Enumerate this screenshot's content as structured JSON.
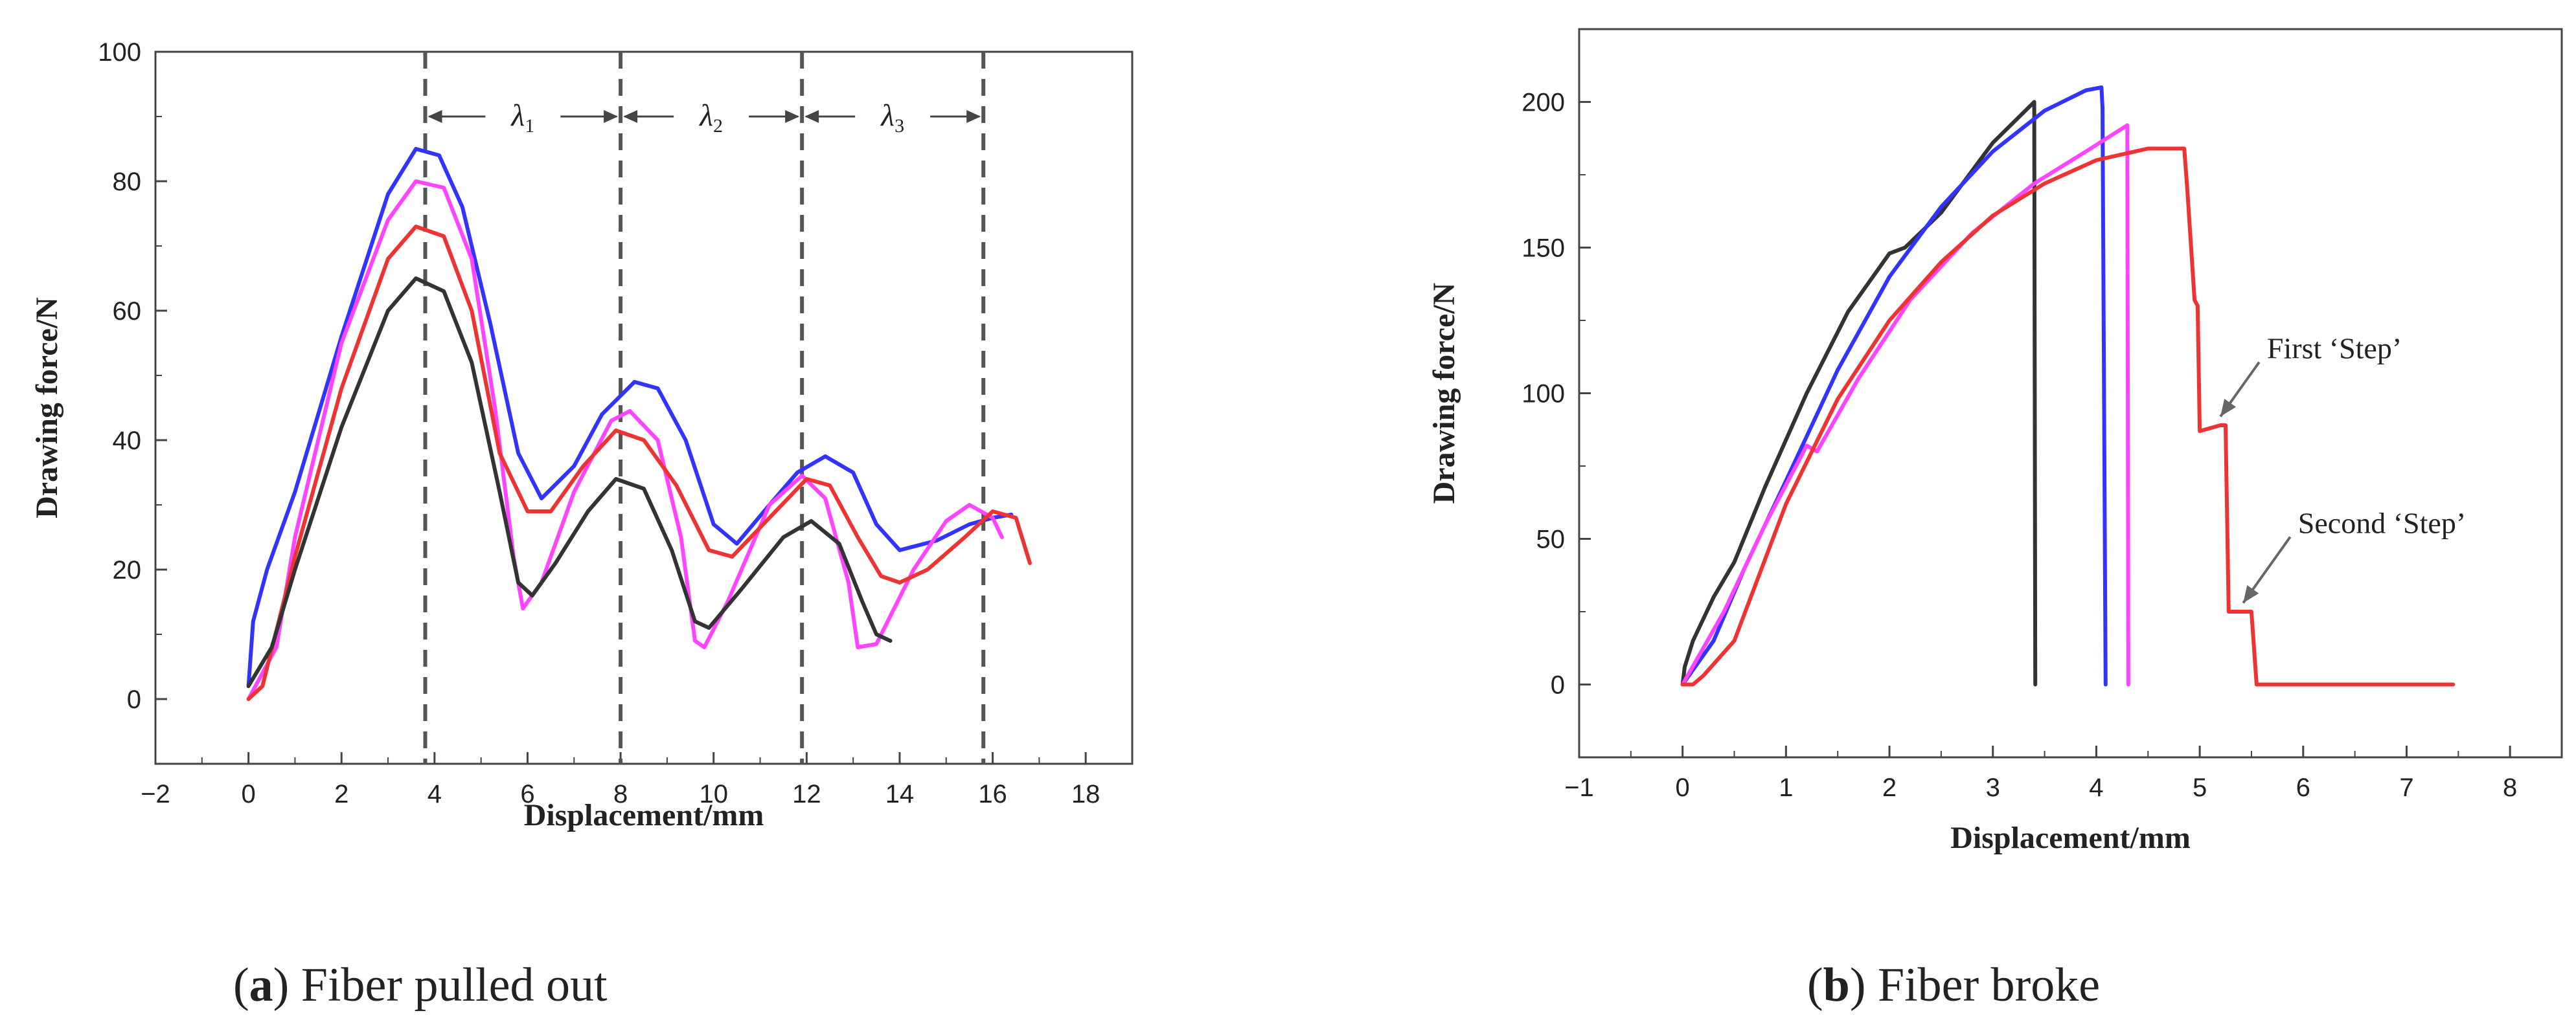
{
  "chart_data": [
    {
      "type": "line",
      "xlabel": "Displacement/mm",
      "ylabel": "Drawing force/N",
      "xlim": [
        -2,
        19
      ],
      "ylim": [
        -10,
        100
      ],
      "xticks": [
        -2,
        0,
        2,
        4,
        6,
        8,
        10,
        12,
        14,
        16,
        18
      ],
      "yticks": [
        0,
        20,
        40,
        60,
        80,
        100
      ],
      "grid": false,
      "legend": "none",
      "vlines": [
        3.8,
        8.0,
        11.9,
        15.8
      ],
      "intervals": [
        {
          "from": 3.8,
          "to": 8.0,
          "label": "λ",
          "sub": "1"
        },
        {
          "from": 8.0,
          "to": 11.9,
          "label": "λ",
          "sub": "2"
        },
        {
          "from": 11.9,
          "to": 15.8,
          "label": "λ",
          "sub": "3"
        }
      ],
      "series": [
        {
          "color": "#3333ff",
          "points": [
            [
              0,
              2
            ],
            [
              0.1,
              12
            ],
            [
              0.4,
              20
            ],
            [
              1,
              32
            ],
            [
              2,
              56
            ],
            [
              3,
              78
            ],
            [
              3.6,
              85
            ],
            [
              4.1,
              84
            ],
            [
              4.6,
              76
            ],
            [
              5.2,
              58
            ],
            [
              5.8,
              38
            ],
            [
              6.3,
              31
            ],
            [
              7,
              36
            ],
            [
              7.6,
              44
            ],
            [
              8.3,
              49
            ],
            [
              8.8,
              48
            ],
            [
              9.4,
              40
            ],
            [
              10,
              27
            ],
            [
              10.5,
              24
            ],
            [
              11.2,
              30
            ],
            [
              11.8,
              35
            ],
            [
              12.4,
              37.5
            ],
            [
              13,
              35
            ],
            [
              13.5,
              27
            ],
            [
              14,
              23
            ],
            [
              14.8,
              24.5
            ],
            [
              15.5,
              27
            ],
            [
              16,
              28
            ],
            [
              16.4,
              28.5
            ]
          ]
        },
        {
          "color": "#ff44ff",
          "points": [
            [
              0,
              0
            ],
            [
              0.6,
              8
            ],
            [
              1,
              25
            ],
            [
              2,
              55
            ],
            [
              3,
              74
            ],
            [
              3.6,
              80
            ],
            [
              4.2,
              79
            ],
            [
              4.8,
              68
            ],
            [
              5.3,
              45
            ],
            [
              5.7,
              22
            ],
            [
              5.9,
              14
            ],
            [
              6.3,
              18
            ],
            [
              7,
              32
            ],
            [
              7.8,
              43
            ],
            [
              8.2,
              44.5
            ],
            [
              8.8,
              40
            ],
            [
              9.3,
              25
            ],
            [
              9.6,
              9
            ],
            [
              9.8,
              8
            ],
            [
              10.3,
              15
            ],
            [
              11.2,
              30
            ],
            [
              11.9,
              34.5
            ],
            [
              12.4,
              31
            ],
            [
              12.9,
              18
            ],
            [
              13.1,
              8
            ],
            [
              13.5,
              8.5
            ],
            [
              14.3,
              20
            ],
            [
              15,
              27.5
            ],
            [
              15.5,
              30
            ],
            [
              16,
              28
            ],
            [
              16.2,
              25
            ]
          ]
        },
        {
          "color": "#ee3333",
          "points": [
            [
              0,
              0
            ],
            [
              0.3,
              2
            ],
            [
              1,
              22
            ],
            [
              2,
              48
            ],
            [
              3,
              68
            ],
            [
              3.6,
              73
            ],
            [
              4.2,
              71.5
            ],
            [
              4.8,
              60
            ],
            [
              5.4,
              38
            ],
            [
              6,
              29
            ],
            [
              6.5,
              29
            ],
            [
              7.2,
              36
            ],
            [
              7.9,
              41.5
            ],
            [
              8.5,
              40
            ],
            [
              9.2,
              33
            ],
            [
              9.9,
              23
            ],
            [
              10.4,
              22
            ],
            [
              11.2,
              28
            ],
            [
              12,
              34
            ],
            [
              12.5,
              33
            ],
            [
              13.1,
              25
            ],
            [
              13.6,
              19
            ],
            [
              14,
              18
            ],
            [
              14.6,
              20
            ],
            [
              15.4,
              25
            ],
            [
              16,
              29
            ],
            [
              16.5,
              28
            ],
            [
              16.8,
              21
            ]
          ]
        },
        {
          "color": "#333333",
          "points": [
            [
              0,
              2
            ],
            [
              0.5,
              8
            ],
            [
              1,
              20
            ],
            [
              2,
              42
            ],
            [
              3,
              60
            ],
            [
              3.6,
              65
            ],
            [
              4.2,
              63
            ],
            [
              4.8,
              52
            ],
            [
              5.4,
              32
            ],
            [
              5.8,
              18
            ],
            [
              6.1,
              16
            ],
            [
              6.6,
              21
            ],
            [
              7.3,
              29
            ],
            [
              7.9,
              34
            ],
            [
              8.5,
              32.5
            ],
            [
              9.1,
              23
            ],
            [
              9.6,
              12
            ],
            [
              9.9,
              11
            ],
            [
              10.6,
              17
            ],
            [
              11.5,
              25
            ],
            [
              12.1,
              27.5
            ],
            [
              12.7,
              24
            ],
            [
              13.2,
              15
            ],
            [
              13.5,
              10
            ],
            [
              13.8,
              9
            ]
          ]
        }
      ]
    },
    {
      "type": "line",
      "xlabel": "Displacement/mm",
      "ylabel": "Drawing force/N",
      "xlim": [
        -1,
        8.5
      ],
      "ylim": [
        -25,
        225
      ],
      "xticks": [
        -1,
        0,
        1,
        2,
        3,
        4,
        5,
        6,
        7,
        8
      ],
      "yticks": [
        0,
        50,
        100,
        150,
        200
      ],
      "grid": false,
      "legend": "none",
      "annotations": [
        {
          "text": "First ‘Step’",
          "x": 5.65,
          "y": 112,
          "arrow_to": [
            5.2,
            92
          ]
        },
        {
          "text": "Second ‘Step’",
          "x": 5.95,
          "y": 52,
          "arrow_to": [
            5.42,
            28
          ]
        }
      ],
      "series": [
        {
          "color": "#333333",
          "points": [
            [
              0,
              0
            ],
            [
              0.02,
              6
            ],
            [
              0.1,
              15
            ],
            [
              0.3,
              30
            ],
            [
              0.5,
              42
            ],
            [
              0.8,
              68
            ],
            [
              1.2,
              100
            ],
            [
              1.6,
              128
            ],
            [
              2,
              148
            ],
            [
              2.15,
              150
            ],
            [
              2.5,
              162
            ],
            [
              3,
              186
            ],
            [
              3.4,
              200
            ],
            [
              3.41,
              0
            ]
          ]
        },
        {
          "color": "#3333ff",
          "points": [
            [
              0,
              0
            ],
            [
              0.3,
              15
            ],
            [
              0.6,
              40
            ],
            [
              1,
              70
            ],
            [
              1.5,
              108
            ],
            [
              2,
              140
            ],
            [
              2.5,
              164
            ],
            [
              3,
              183
            ],
            [
              3.5,
              197
            ],
            [
              3.9,
              204
            ],
            [
              4.05,
              205
            ],
            [
              4.06,
              198
            ],
            [
              4.09,
              0
            ]
          ]
        },
        {
          "color": "#ff44ff",
          "points": [
            [
              0,
              0
            ],
            [
              0.4,
              25
            ],
            [
              0.8,
              55
            ],
            [
              1.2,
              82
            ],
            [
              1.3,
              80
            ],
            [
              1.7,
              105
            ],
            [
              2.2,
              132
            ],
            [
              2.8,
              155
            ],
            [
              3.4,
              172
            ],
            [
              3.9,
              183
            ],
            [
              4.3,
              192
            ],
            [
              4.31,
              0
            ]
          ]
        },
        {
          "color": "#ee3333",
          "points": [
            [
              0,
              0
            ],
            [
              0.1,
              0
            ],
            [
              0.2,
              3
            ],
            [
              0.5,
              15
            ],
            [
              1,
              62
            ],
            [
              1.5,
              98
            ],
            [
              2,
              125
            ],
            [
              2.5,
              145
            ],
            [
              3,
              161
            ],
            [
              3.5,
              172
            ],
            [
              4,
              180
            ],
            [
              4.5,
              184
            ],
            [
              4.85,
              184
            ],
            [
              4.88,
              170
            ],
            [
              4.95,
              132
            ],
            [
              4.98,
              130
            ],
            [
              5,
              87
            ],
            [
              5.2,
              89
            ],
            [
              5.25,
              89
            ],
            [
              5.28,
              25
            ],
            [
              5.5,
              25
            ],
            [
              5.55,
              0
            ],
            [
              7.45,
              0
            ]
          ]
        }
      ]
    }
  ],
  "captions": [
    {
      "letter": "a",
      "prefix": "(",
      "suffix": ") Fiber pulled out"
    },
    {
      "letter": "b",
      "prefix": "(",
      "suffix": ") Fiber broke"
    }
  ],
  "colors": {
    "axis": "#444444",
    "dashed": "#555555",
    "text": "#222222"
  }
}
